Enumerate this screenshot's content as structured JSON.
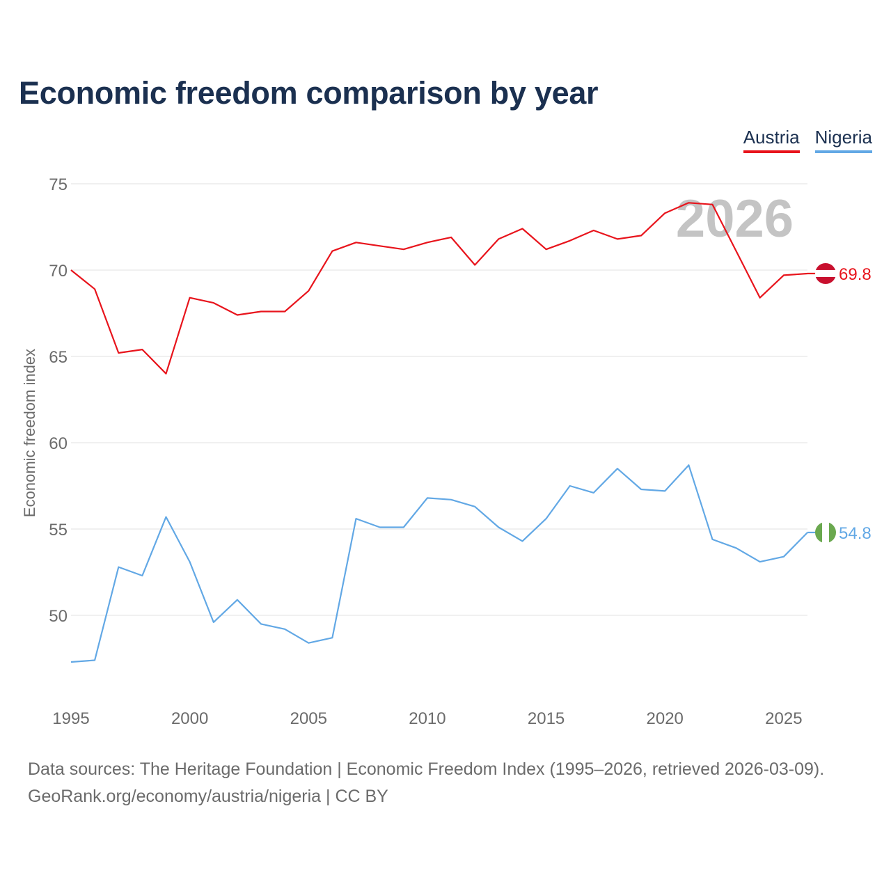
{
  "chart_data": {
    "type": "line",
    "title": "Economic freedom comparison by year",
    "ylabel": "Economic freedom index",
    "xlabel": "",
    "ylim": [
      45,
      76
    ],
    "xlim": [
      1995,
      2026
    ],
    "yticks": [
      50,
      55,
      60,
      65,
      70,
      75
    ],
    "xticks": [
      1995,
      2000,
      2005,
      2010,
      2015,
      2020,
      2025
    ],
    "year_watermark": "2026",
    "x": [
      1995,
      1996,
      1997,
      1998,
      1999,
      2000,
      2001,
      2002,
      2003,
      2004,
      2005,
      2006,
      2007,
      2008,
      2009,
      2010,
      2011,
      2012,
      2013,
      2014,
      2015,
      2016,
      2017,
      2018,
      2019,
      2020,
      2021,
      2022,
      2023,
      2024,
      2025,
      2026
    ],
    "series": [
      {
        "name": "Austria",
        "color": "#e8141c",
        "end_label": "69.8",
        "flag": "austria-flag",
        "values": [
          70.0,
          68.9,
          65.2,
          65.4,
          64.0,
          68.4,
          68.1,
          67.4,
          67.6,
          67.6,
          68.8,
          71.1,
          71.6,
          71.4,
          71.2,
          71.6,
          71.9,
          70.3,
          71.8,
          72.4,
          71.2,
          71.7,
          72.3,
          71.8,
          72.0,
          73.3,
          73.9,
          73.8,
          71.1,
          68.4,
          69.7,
          69.8
        ]
      },
      {
        "name": "Nigeria",
        "color": "#62a8e5",
        "end_label": "54.8",
        "flag": "nigeria-flag",
        "values": [
          47.3,
          47.4,
          52.8,
          52.3,
          55.7,
          53.1,
          49.6,
          50.9,
          49.5,
          49.2,
          48.4,
          48.7,
          55.6,
          55.1,
          55.1,
          56.8,
          56.7,
          56.3,
          55.1,
          54.3,
          55.6,
          57.5,
          57.1,
          58.5,
          57.3,
          57.2,
          58.7,
          54.4,
          53.9,
          53.1,
          53.4,
          54.8
        ]
      }
    ]
  },
  "footer": {
    "line1": "Data sources: The Heritage Foundation | Economic Freedom Index (1995–2026, retrieved 2026-03-09).",
    "line2": "GeoRank.org/economy/austria/nigeria | CC BY"
  }
}
